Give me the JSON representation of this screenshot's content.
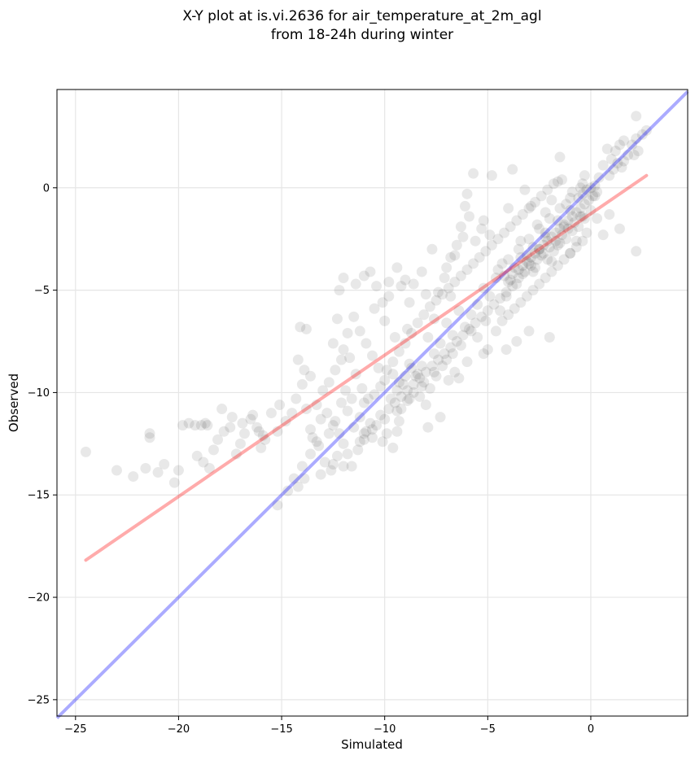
{
  "chart_data": {
    "type": "scatter",
    "title_line1": "X-Y plot at is.vi.2636 for air_temperature_at_2m_agl",
    "title_line2": "from 18-24h during winter",
    "xlabel": "Simulated",
    "ylabel": "Observed",
    "xlim": [
      -25.9,
      4.7
    ],
    "ylim": [
      -25.8,
      4.8
    ],
    "xticks": [
      -25,
      -20,
      -15,
      -10,
      -5,
      0
    ],
    "yticks": [
      -25,
      -20,
      -15,
      -10,
      -5,
      0
    ],
    "grid": true,
    "point_color": "#000000",
    "points": [
      [
        -24.5,
        -12.9
      ],
      [
        -23.0,
        -13.8
      ],
      [
        -22.2,
        -14.1
      ],
      [
        -21.6,
        -13.7
      ],
      [
        -21.0,
        -13.9
      ],
      [
        -20.7,
        -13.5
      ],
      [
        -20.2,
        -14.4
      ],
      [
        -20.0,
        -13.8
      ],
      [
        -21.4,
        -12.0
      ],
      [
        -21.4,
        -12.2
      ],
      [
        -19.8,
        -11.6
      ],
      [
        -19.5,
        -11.5
      ],
      [
        -19.2,
        -11.6
      ],
      [
        -18.9,
        -11.6
      ],
      [
        -18.7,
        -11.5
      ],
      [
        -18.6,
        -11.6
      ],
      [
        -19.1,
        -13.1
      ],
      [
        -18.8,
        -13.4
      ],
      [
        -18.5,
        -13.7
      ],
      [
        -18.3,
        -12.8
      ],
      [
        -18.1,
        -12.3
      ],
      [
        -17.8,
        -11.9
      ],
      [
        -17.5,
        -11.7
      ],
      [
        -17.2,
        -13.0
      ],
      [
        -17.0,
        -12.5
      ],
      [
        -16.8,
        -12.0
      ],
      [
        -16.5,
        -11.3
      ],
      [
        -16.2,
        -11.7
      ],
      [
        -16.0,
        -12.7
      ],
      [
        -15.8,
        -12.3
      ],
      [
        -15.5,
        -11.0
      ],
      [
        -15.2,
        -11.9
      ],
      [
        -17.9,
        -10.8
      ],
      [
        -17.4,
        -11.2
      ],
      [
        -16.9,
        -11.5
      ],
      [
        -16.4,
        -11.1
      ],
      [
        -16.1,
        -11.9
      ],
      [
        -15.9,
        -12.1
      ],
      [
        -15.1,
        -10.6
      ],
      [
        -14.8,
        -11.4
      ],
      [
        -14.5,
        -11.0
      ],
      [
        -14.3,
        -10.3
      ],
      [
        -14.0,
        -9.6
      ],
      [
        -13.8,
        -10.8
      ],
      [
        -13.6,
        -11.8
      ],
      [
        -13.3,
        -12.4
      ],
      [
        -13.1,
        -11.3
      ],
      [
        -12.8,
        -11.0
      ],
      [
        -12.5,
        -11.6
      ],
      [
        -12.2,
        -12.0
      ],
      [
        -12.0,
        -12.5
      ],
      [
        -15.2,
        -15.5
      ],
      [
        -14.7,
        -14.8
      ],
      [
        -14.4,
        -14.2
      ],
      [
        -14.0,
        -13.6
      ],
      [
        -13.6,
        -13.0
      ],
      [
        -13.2,
        -12.6
      ],
      [
        -12.9,
        -13.4
      ],
      [
        -12.6,
        -13.8
      ],
      [
        -12.3,
        -13.1
      ],
      [
        -12.0,
        -13.6
      ],
      [
        -11.6,
        -13.6
      ],
      [
        -11.3,
        -12.8
      ],
      [
        -11.0,
        -12.3
      ],
      [
        -13.9,
        -14.2
      ],
      [
        -14.2,
        -14.6
      ],
      [
        -13.5,
        -12.2
      ],
      [
        -12.7,
        -12.0
      ],
      [
        -12.4,
        -11.4
      ],
      [
        -12.1,
        -10.5
      ],
      [
        -11.8,
        -10.9
      ],
      [
        -11.5,
        -11.7
      ],
      [
        -11.2,
        -11.2
      ],
      [
        -10.9,
        -11.9
      ],
      [
        -10.6,
        -12.2
      ],
      [
        -10.4,
        -11.6
      ],
      [
        -10.1,
        -12.4
      ],
      [
        -9.9,
        -12.0
      ],
      [
        -9.6,
        -12.7
      ],
      [
        -10.2,
        -11.1
      ],
      [
        -10.8,
        -10.3
      ],
      [
        -11.1,
        -9.8
      ],
      [
        -11.4,
        -9.1
      ],
      [
        -11.7,
        -8.3
      ],
      [
        -12.0,
        -7.9
      ],
      [
        -12.3,
        -6.4
      ],
      [
        -12.2,
        -5.0
      ],
      [
        -12.0,
        -4.4
      ],
      [
        -11.4,
        -4.7
      ],
      [
        -11.0,
        -4.3
      ],
      [
        -10.7,
        -4.1
      ],
      [
        -10.4,
        -4.8
      ],
      [
        -10.1,
        -5.6
      ],
      [
        -9.8,
        -4.6
      ],
      [
        -9.4,
        -3.9
      ],
      [
        -9.0,
        -4.5
      ],
      [
        -8.6,
        -4.7
      ],
      [
        -8.2,
        -4.1
      ],
      [
        -7.7,
        -3.0
      ],
      [
        -7.4,
        -5.1
      ],
      [
        -7.1,
        -4.4
      ],
      [
        -6.8,
        -3.4
      ],
      [
        -6.5,
        -2.8
      ],
      [
        -6.3,
        -1.9
      ],
      [
        -6.1,
        -0.9
      ],
      [
        -6.0,
        -0.3
      ],
      [
        -5.7,
        0.7
      ],
      [
        -5.2,
        -1.6
      ],
      [
        -4.9,
        -2.3
      ],
      [
        -4.0,
        -1.0
      ],
      [
        -3.8,
        0.9
      ],
      [
        -4.8,
        0.6
      ],
      [
        -3.2,
        -0.1
      ],
      [
        -2.9,
        -0.9
      ],
      [
        -2.6,
        -1.8
      ],
      [
        -2.2,
        -1.2
      ],
      [
        -1.9,
        -0.6
      ],
      [
        -1.6,
        0.3
      ],
      [
        -1.5,
        1.5
      ],
      [
        -1.4,
        0.4
      ],
      [
        -1.2,
        -0.8
      ],
      [
        -0.9,
        -0.2
      ],
      [
        -0.6,
        -0.5
      ],
      [
        -0.4,
        0.2
      ],
      [
        -0.3,
        0.6
      ],
      [
        -0.2,
        -0.1
      ],
      [
        0.0,
        0.0
      ],
      [
        0.2,
        -0.4
      ],
      [
        0.4,
        0.5
      ],
      [
        0.6,
        1.1
      ],
      [
        0.8,
        1.9
      ],
      [
        1.0,
        1.4
      ],
      [
        1.2,
        1.8
      ],
      [
        1.4,
        2.1
      ],
      [
        1.6,
        2.3
      ],
      [
        1.8,
        1.6
      ],
      [
        2.0,
        2.1
      ],
      [
        2.2,
        2.4
      ],
      [
        2.3,
        1.8
      ],
      [
        2.5,
        2.6
      ],
      [
        2.7,
        2.8
      ],
      [
        2.2,
        3.5
      ],
      [
        2.1,
        1.6
      ],
      [
        1.6,
        1.3
      ],
      [
        2.2,
        -3.1
      ],
      [
        1.4,
        -2.0
      ],
      [
        0.9,
        -1.3
      ],
      [
        0.6,
        -2.3
      ],
      [
        0.3,
        -1.5
      ],
      [
        -0.2,
        -2.2
      ],
      [
        -0.4,
        -1.4
      ],
      [
        -0.7,
        -2.6
      ],
      [
        -1.0,
        -3.2
      ],
      [
        -1.3,
        -1.9
      ],
      [
        -1.6,
        -2.8
      ],
      [
        -1.9,
        -3.6
      ],
      [
        -2.2,
        -2.4
      ],
      [
        -2.5,
        -3.0
      ],
      [
        -2.8,
        -4.1
      ],
      [
        -3.1,
        -3.3
      ],
      [
        -3.4,
        -2.6
      ],
      [
        -3.7,
        -3.9
      ],
      [
        -4.0,
        -4.6
      ],
      [
        -4.3,
        -3.7
      ],
      [
        -4.6,
        -4.4
      ],
      [
        -4.9,
        -5.3
      ],
      [
        -5.2,
        -4.9
      ],
      [
        -5.5,
        -5.7
      ],
      [
        -5.8,
        -6.2
      ],
      [
        -6.1,
        -6.8
      ],
      [
        -6.4,
        -6.0
      ],
      [
        -6.7,
        -7.2
      ],
      [
        -7.0,
        -6.6
      ],
      [
        -7.3,
        -7.6
      ],
      [
        -7.6,
        -8.1
      ],
      [
        -7.9,
        -7.3
      ],
      [
        -8.2,
        -8.7
      ],
      [
        -8.5,
        -9.2
      ],
      [
        -8.8,
        -8.6
      ],
      [
        -9.1,
        -9.6
      ],
      [
        -9.4,
        -9.9
      ],
      [
        -9.7,
        -10.3
      ],
      [
        -10.0,
        -9.4
      ],
      [
        -10.3,
        -8.8
      ],
      [
        -10.6,
        -8.2
      ],
      [
        -10.9,
        -7.6
      ],
      [
        -11.2,
        -7.0
      ],
      [
        -11.5,
        -6.3
      ],
      [
        -11.8,
        -7.1
      ],
      [
        -12.1,
        -8.4
      ],
      [
        -12.4,
        -8.9
      ],
      [
        -12.7,
        -9.5
      ],
      [
        -13.0,
        -9.9
      ],
      [
        -13.3,
        -10.6
      ],
      [
        -13.6,
        -9.2
      ],
      [
        -13.9,
        -8.9
      ],
      [
        -14.2,
        -8.4
      ],
      [
        -14.1,
        -6.8
      ],
      [
        -13.8,
        -6.9
      ],
      [
        -12.5,
        -7.6
      ],
      [
        -11.9,
        -9.9
      ],
      [
        -11.6,
        -10.3
      ],
      [
        -11.0,
        -10.5
      ],
      [
        -10.5,
        -10.1
      ],
      [
        -10.2,
        -9.7
      ],
      [
        -9.9,
        -8.9
      ],
      [
        -9.6,
        -8.5
      ],
      [
        -9.3,
        -8.0
      ],
      [
        -9.0,
        -7.6
      ],
      [
        -8.7,
        -7.1
      ],
      [
        -8.4,
        -6.6
      ],
      [
        -8.1,
        -6.2
      ],
      [
        -7.8,
        -5.8
      ],
      [
        -7.5,
        -5.5
      ],
      [
        -7.2,
        -5.2
      ],
      [
        -6.9,
        -4.9
      ],
      [
        -6.6,
        -4.6
      ],
      [
        -6.3,
        -4.3
      ],
      [
        -6.0,
        -4.0
      ],
      [
        -5.7,
        -3.7
      ],
      [
        -5.4,
        -3.4
      ],
      [
        -5.1,
        -3.1
      ],
      [
        -4.8,
        -2.8
      ],
      [
        -4.5,
        -2.5
      ],
      [
        -4.2,
        -2.2
      ],
      [
        -3.9,
        -1.9
      ],
      [
        -3.6,
        -1.6
      ],
      [
        -3.3,
        -1.3
      ],
      [
        -3.0,
        -1.0
      ],
      [
        -2.7,
        -0.7
      ],
      [
        -2.4,
        -0.4
      ],
      [
        -2.1,
        -0.1
      ],
      [
        -1.8,
        0.2
      ],
      [
        -3.5,
        -4.4
      ],
      [
        -3.2,
        -4.1
      ],
      [
        -2.9,
        -3.8
      ],
      [
        -2.6,
        -3.5
      ],
      [
        -2.3,
        -3.2
      ],
      [
        -2.0,
        -2.9
      ],
      [
        -1.7,
        -2.6
      ],
      [
        -1.4,
        -2.3
      ],
      [
        -1.1,
        -2.0
      ],
      [
        -0.8,
        -1.7
      ],
      [
        -0.5,
        -1.4
      ],
      [
        -3.8,
        -4.8
      ],
      [
        -4.1,
        -5.1
      ],
      [
        -4.4,
        -5.4
      ],
      [
        -4.7,
        -5.7
      ],
      [
        -5.0,
        -6.0
      ],
      [
        -5.3,
        -6.3
      ],
      [
        -5.6,
        -6.6
      ],
      [
        -5.9,
        -6.9
      ],
      [
        -6.2,
        -7.2
      ],
      [
        -6.5,
        -7.5
      ],
      [
        -6.8,
        -7.8
      ],
      [
        -7.1,
        -8.1
      ],
      [
        -7.4,
        -8.4
      ],
      [
        -7.7,
        -8.7
      ],
      [
        -8.0,
        -9.0
      ],
      [
        -8.3,
        -9.3
      ],
      [
        -8.6,
        -9.6
      ],
      [
        -8.9,
        -9.9
      ],
      [
        -9.2,
        -10.2
      ],
      [
        -9.5,
        -10.5
      ],
      [
        -9.8,
        -10.8
      ],
      [
        -8.0,
        -10.6
      ],
      [
        -8.3,
        -10.2
      ],
      [
        -8.6,
        -10.0
      ],
      [
        -8.9,
        -10.4
      ],
      [
        -9.2,
        -10.8
      ],
      [
        -7.8,
        -9.8
      ],
      [
        -8.1,
        -9.5
      ],
      [
        -8.4,
        -9.1
      ],
      [
        -8.7,
        -8.8
      ],
      [
        -9.0,
        -9.2
      ],
      [
        -9.3,
        -9.5
      ],
      [
        -9.6,
        -9.1
      ],
      [
        -7.5,
        -9.2
      ],
      [
        -7.2,
        -8.7
      ],
      [
        -6.9,
        -9.4
      ],
      [
        -6.6,
        -9.0
      ],
      [
        -6.7,
        -8.1
      ],
      [
        -7.9,
        -11.7
      ],
      [
        -7.3,
        -11.2
      ],
      [
        -9.4,
        -11.9
      ],
      [
        -10.7,
        -11.5
      ],
      [
        -11.0,
        -12.0
      ],
      [
        -9.3,
        -11.4
      ],
      [
        -4.6,
        -7.0
      ],
      [
        -4.3,
        -6.5
      ],
      [
        -4.0,
        -6.2
      ],
      [
        -3.7,
        -5.9
      ],
      [
        -3.4,
        -5.6
      ],
      [
        -3.1,
        -5.3
      ],
      [
        -2.8,
        -5.0
      ],
      [
        -2.5,
        -4.7
      ],
      [
        -2.2,
        -4.4
      ],
      [
        -1.9,
        -4.1
      ],
      [
        -1.6,
        -3.8
      ],
      [
        -1.3,
        -3.5
      ],
      [
        -1.0,
        -3.2
      ],
      [
        -0.7,
        -2.9
      ],
      [
        -0.4,
        -2.6
      ],
      [
        -2.0,
        -7.3
      ],
      [
        -3.0,
        -7.0
      ],
      [
        -3.6,
        -7.5
      ],
      [
        -4.1,
        -7.9
      ],
      [
        -5.0,
        -7.9
      ],
      [
        -5.5,
        -7.3
      ],
      [
        -6.0,
        -8.5
      ],
      [
        -6.4,
        -9.3
      ],
      [
        -5.2,
        -8.1
      ],
      [
        -3.5,
        -4.0
      ],
      [
        -3.3,
        -3.8
      ],
      [
        -3.1,
        -3.6
      ],
      [
        -2.9,
        -3.4
      ],
      [
        -2.7,
        -3.2
      ],
      [
        -2.5,
        -3.0
      ],
      [
        -2.3,
        -2.8
      ],
      [
        -2.1,
        -2.6
      ],
      [
        -1.9,
        -2.4
      ],
      [
        -1.7,
        -2.2
      ],
      [
        -1.5,
        -2.0
      ],
      [
        -1.3,
        -1.8
      ],
      [
        -1.1,
        -1.6
      ],
      [
        -0.9,
        -1.4
      ],
      [
        -0.7,
        -1.2
      ],
      [
        -0.5,
        -1.0
      ],
      [
        -0.3,
        -0.8
      ],
      [
        -0.1,
        -0.6
      ],
      [
        0.1,
        -0.4
      ],
      [
        0.3,
        -0.2
      ],
      [
        -4.2,
        -4.3
      ],
      [
        -3.9,
        -4.5
      ],
      [
        -3.6,
        -4.7
      ],
      [
        -3.3,
        -4.2
      ],
      [
        -3.0,
        -3.7
      ],
      [
        -2.7,
        -3.9
      ],
      [
        -2.4,
        -3.3
      ],
      [
        -2.1,
        -3.5
      ],
      [
        -1.8,
        -3.1
      ],
      [
        -1.5,
        -2.7
      ],
      [
        -1.2,
        -2.5
      ],
      [
        -0.9,
        -2.1
      ],
      [
        -0.6,
        -1.9
      ],
      [
        -0.3,
        -1.5
      ],
      [
        0.0,
        -1.1
      ],
      [
        -4.5,
        -4.0
      ],
      [
        -4.0,
        -3.5
      ],
      [
        -3.5,
        -3.0
      ],
      [
        -3.0,
        -2.5
      ],
      [
        -2.5,
        -2.0
      ],
      [
        -2.0,
        -1.5
      ],
      [
        -1.5,
        -1.0
      ],
      [
        -1.0,
        -0.5
      ],
      [
        -0.5,
        0.0
      ],
      [
        -3.8,
        -4.2
      ],
      [
        -3.4,
        -3.4
      ],
      [
        -2.8,
        -2.9
      ],
      [
        -2.2,
        -2.2
      ],
      [
        -1.6,
        -1.6
      ],
      [
        -1.0,
        -1.1
      ],
      [
        -0.4,
        -0.3
      ],
      [
        0.2,
        0.1
      ],
      [
        0.9,
        0.6
      ],
      [
        1.1,
        0.9
      ],
      [
        1.3,
        1.2
      ],
      [
        1.5,
        1.0
      ],
      [
        -5.3,
        -2.0
      ],
      [
        -5.6,
        -2.6
      ],
      [
        -6.8,
        -5.3
      ],
      [
        -7.6,
        -6.4
      ],
      [
        -8.9,
        -6.9
      ],
      [
        -9.5,
        -7.3
      ],
      [
        -10.0,
        -6.5
      ],
      [
        -10.5,
        -5.9
      ],
      [
        -9.8,
        -5.3
      ],
      [
        -9.2,
        -4.8
      ],
      [
        -8.8,
        -5.6
      ],
      [
        -8.0,
        -5.2
      ],
      [
        -7.0,
        -3.9
      ],
      [
        -6.6,
        -3.3
      ],
      [
        -6.2,
        -2.4
      ],
      [
        -5.9,
        -1.4
      ],
      [
        -4.1,
        -5.3
      ],
      [
        -4.4,
        -6.0
      ],
      [
        -5.1,
        -6.5
      ],
      [
        -5.8,
        -7.0
      ],
      [
        -6.3,
        -7.7
      ],
      [
        -7.0,
        -8.4
      ],
      [
        -7.6,
        -9.0
      ],
      [
        -8.2,
        -9.7
      ],
      [
        -8.8,
        -10.3
      ],
      [
        -9.4,
        -10.9
      ],
      [
        -10.0,
        -11.3
      ],
      [
        -10.6,
        -11.8
      ],
      [
        -11.2,
        -12.4
      ],
      [
        -11.8,
        -13.0
      ],
      [
        -12.5,
        -13.5
      ],
      [
        -13.1,
        -14.0
      ]
    ]
  }
}
